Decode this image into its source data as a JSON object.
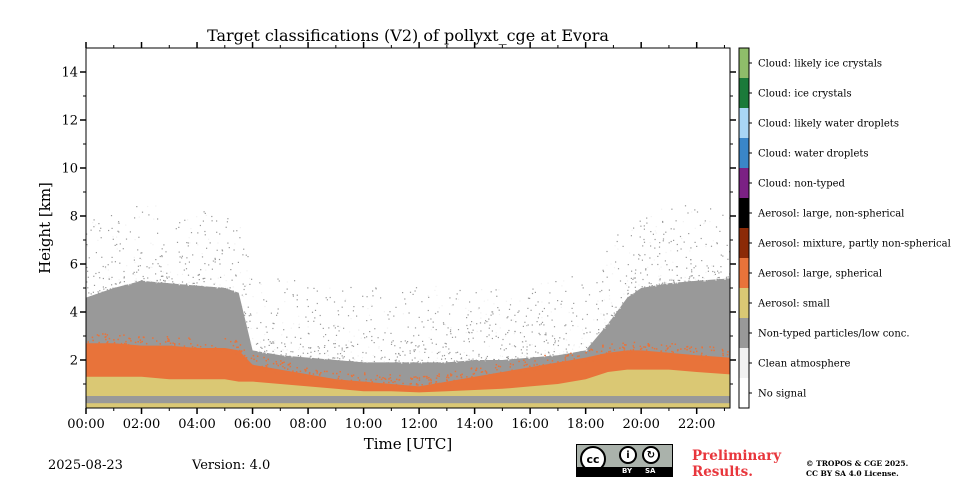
{
  "chart_data": {
    "type": "heatmap",
    "title": "Target classifications (V2) of pollyxt_cge at Evora",
    "xlabel": "Time [UTC]",
    "ylabel": "Height [km]",
    "xlim": [
      0,
      23.2
    ],
    "ylim": [
      0,
      15
    ],
    "x_ticks": [
      {
        "value": 0,
        "label": "00:00"
      },
      {
        "value": 2,
        "label": "02:00"
      },
      {
        "value": 4,
        "label": "04:00"
      },
      {
        "value": 6,
        "label": "06:00"
      },
      {
        "value": 8,
        "label": "08:00"
      },
      {
        "value": 10,
        "label": "10:00"
      },
      {
        "value": 12,
        "label": "12:00"
      },
      {
        "value": 14,
        "label": "14:00"
      },
      {
        "value": 16,
        "label": "16:00"
      },
      {
        "value": 18,
        "label": "18:00"
      },
      {
        "value": 20,
        "label": "20:00"
      },
      {
        "value": 22,
        "label": "22:00"
      }
    ],
    "y_ticks": [
      {
        "value": 2,
        "label": "2"
      },
      {
        "value": 4,
        "label": "4"
      },
      {
        "value": 6,
        "label": "6"
      },
      {
        "value": 8,
        "label": "8"
      },
      {
        "value": 10,
        "label": "10"
      },
      {
        "value": 12,
        "label": "12"
      },
      {
        "value": 14,
        "label": "14"
      }
    ],
    "legend": [
      {
        "label": "Cloud: likely ice crystals",
        "color": "#8fbd6a"
      },
      {
        "label": "Cloud: ice crystals",
        "color": "#1b7a3a"
      },
      {
        "label": "Cloud: likely water droplets",
        "color": "#a9d6f5"
      },
      {
        "label": "Cloud: water droplets",
        "color": "#3a86c8"
      },
      {
        "label": "Cloud: non-typed",
        "color": "#7b2184"
      },
      {
        "label": "Aerosol: large, non-spherical",
        "color": "#000000"
      },
      {
        "label": "Aerosol: mixture, partly non-spherical",
        "color": "#8b2a07"
      },
      {
        "label": "Aerosol: large, spherical",
        "color": "#e8733a"
      },
      {
        "label": "Aerosol: small",
        "color": "#dac874"
      },
      {
        "label": "Non-typed particles/low conc.",
        "color": "#999999"
      },
      {
        "label": "Clean atmosphere",
        "color": "#f2f2f2"
      },
      {
        "label": "No signal",
        "color": "#ffffff"
      }
    ],
    "layers": [
      {
        "class": "Aerosol: small",
        "times": [
          0,
          1,
          2,
          3,
          4,
          5,
          5.5,
          6,
          7,
          8,
          9,
          10,
          11,
          12,
          13,
          14,
          15,
          16,
          17,
          18,
          18.8,
          19.5,
          20,
          21,
          22,
          23.2
        ],
        "top_km": [
          1.3,
          1.3,
          1.3,
          1.2,
          1.2,
          1.2,
          1.1,
          1.1,
          1.0,
          0.9,
          0.8,
          0.7,
          0.7,
          0.65,
          0.7,
          0.75,
          0.8,
          0.9,
          1.0,
          1.2,
          1.5,
          1.6,
          1.6,
          1.6,
          1.5,
          1.4
        ]
      },
      {
        "class": "Aerosol: large, spherical",
        "times": [
          0,
          1,
          2,
          3,
          4,
          5,
          5.5,
          6,
          7,
          8,
          9,
          10,
          11,
          12,
          13,
          14,
          15,
          16,
          17,
          18,
          18.8,
          19.5,
          20,
          21,
          22,
          23.2
        ],
        "top_km": [
          2.7,
          2.7,
          2.6,
          2.6,
          2.5,
          2.5,
          2.4,
          1.8,
          1.6,
          1.4,
          1.2,
          1.1,
          1.0,
          0.9,
          1.1,
          1.3,
          1.5,
          1.7,
          1.9,
          2.1,
          2.3,
          2.4,
          2.4,
          2.3,
          2.2,
          2.1
        ]
      },
      {
        "class": "Non-typed particles/low conc.",
        "times": [
          0,
          1,
          2,
          3,
          4,
          5,
          5.5,
          6,
          7,
          8,
          9,
          10,
          11,
          12,
          13,
          14,
          15,
          16,
          17,
          18,
          18.8,
          19.5,
          20,
          21,
          22,
          23.2
        ],
        "top_km": [
          4.6,
          5.0,
          5.3,
          5.2,
          5.1,
          5.0,
          4.8,
          2.4,
          2.2,
          2.1,
          2.0,
          1.9,
          1.9,
          1.9,
          1.9,
          2.0,
          2.0,
          2.1,
          2.2,
          2.4,
          3.5,
          4.6,
          5.0,
          5.2,
          5.3,
          5.4
        ]
      }
    ],
    "surface_band": {
      "class": "Non-typed particles/low conc.",
      "range_km": [
        0.2,
        0.5
      ]
    }
  },
  "footer": {
    "date": "2025-08-23",
    "version": "Version: 4.0",
    "preliminary_line1": "Preliminary",
    "preliminary_line2": "Results.",
    "copyright_line1": "© TROPOS & CGE 2025.",
    "copyright_line2": "CC BY SA 4.0 License."
  },
  "license_badge": {
    "cc": "cc",
    "by": "BY",
    "sa": "SA"
  }
}
